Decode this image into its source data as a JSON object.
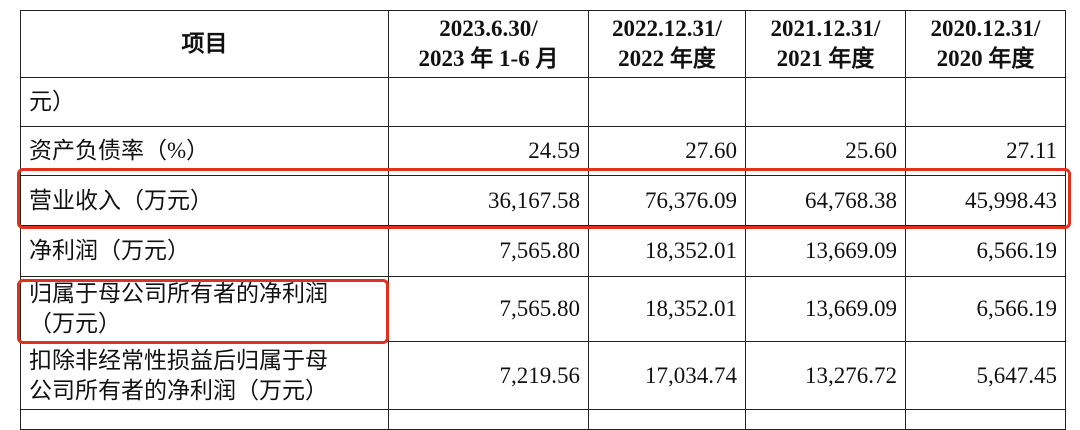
{
  "table": {
    "header": [
      [
        "项目"
      ],
      [
        "2023.6.30/",
        "2023 年 1-6 月"
      ],
      [
        "2022.12.31/",
        "2022 年度"
      ],
      [
        "2021.12.31/",
        "2021 年度"
      ],
      [
        "2020.12.31/",
        "2020 年度"
      ]
    ],
    "rows": [
      [
        [
          "元）"
        ],
        "",
        "",
        "",
        ""
      ],
      [
        [
          "资产负债率（%）"
        ],
        "24.59",
        "27.60",
        "25.60",
        "27.11"
      ],
      [
        [
          "营业收入（万元）"
        ],
        "36,167.58",
        "76,376.09",
        "64,768.38",
        "45,998.43"
      ],
      [
        [
          "净利润（万元）"
        ],
        "7,565.80",
        "18,352.01",
        "13,669.09",
        "6,566.19"
      ],
      [
        [
          "归属于母公司所有者的净利润",
          "（万元）"
        ],
        "7,565.80",
        "18,352.01",
        "13,669.09",
        "6,566.19"
      ],
      [
        [
          "扣除非经常性损益后归属于母",
          "公司所有者的净利润（万元）"
        ],
        "7,219.56",
        "17,034.74",
        "13,276.72",
        "5,647.45"
      ]
    ]
  }
}
